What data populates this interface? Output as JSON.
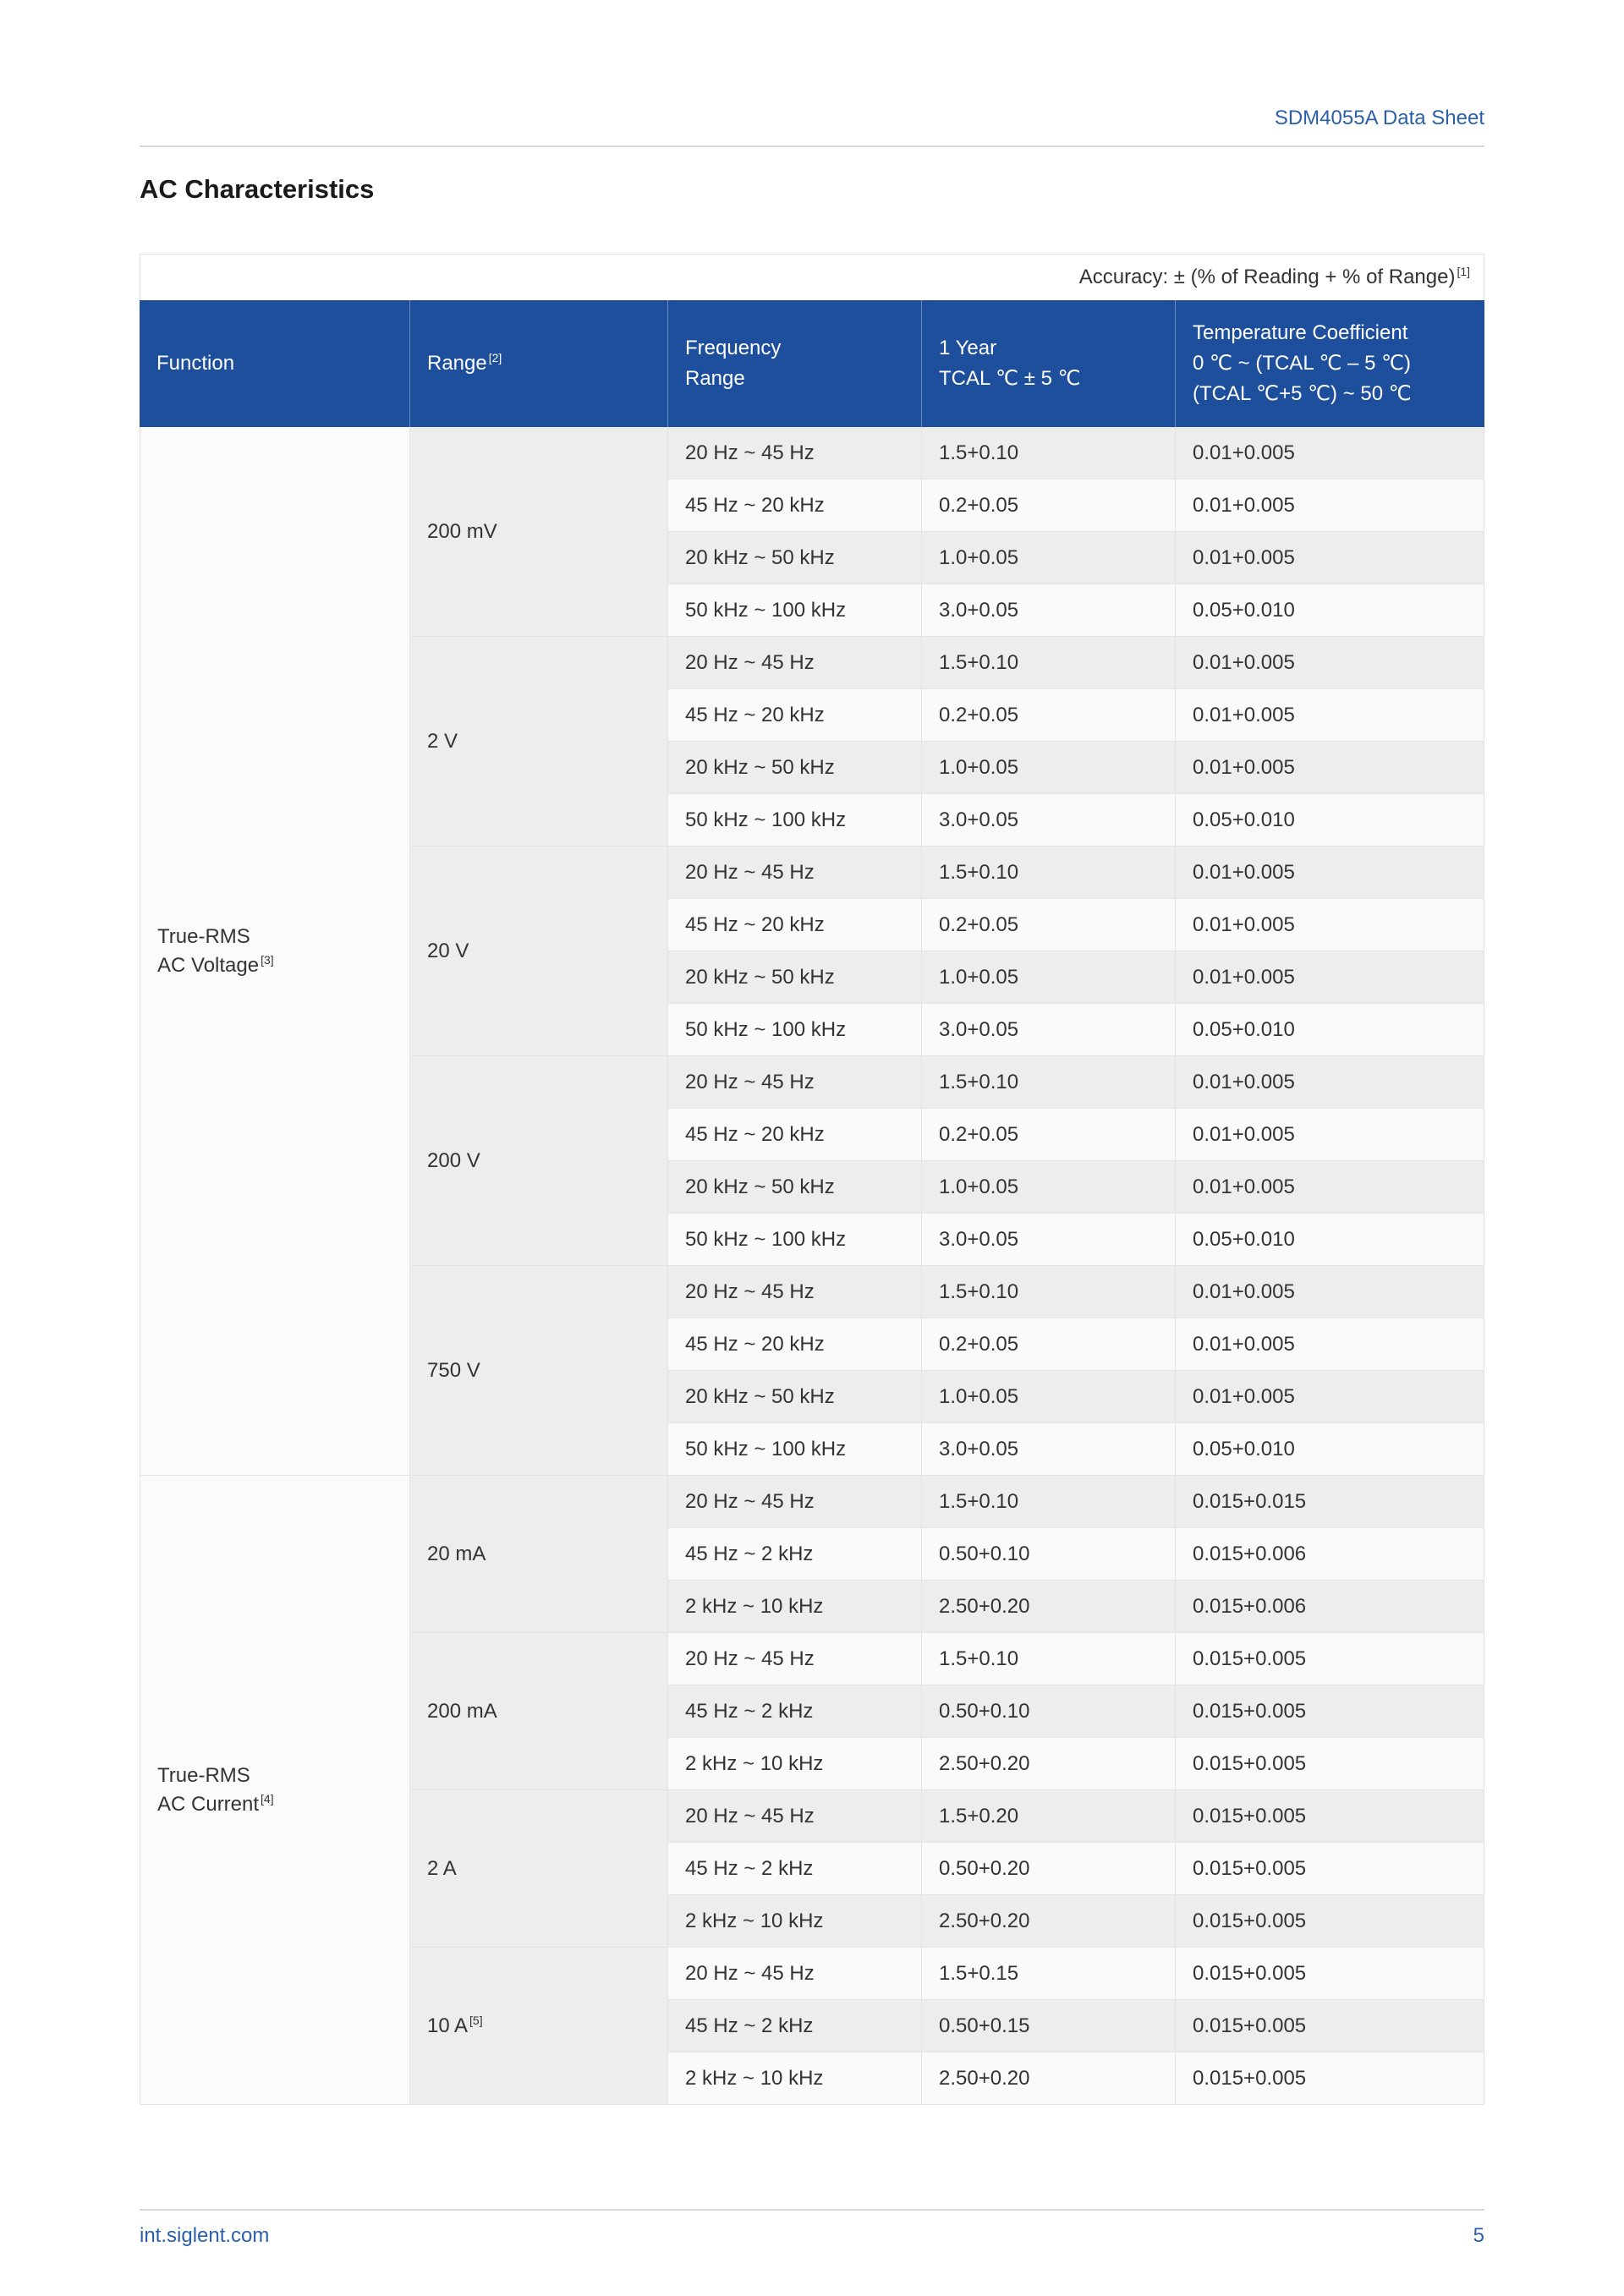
{
  "page": {
    "doc_header": "SDM4055A Data Sheet",
    "title": "AC Characteristics",
    "footer": {
      "site": "int.siglent.com",
      "page_number": "5"
    }
  },
  "colors": {
    "header_bg": "#1e4f9c",
    "accent_blue": "#2b5fa7",
    "row_gray": "#ededed",
    "row_white": "#fafafa"
  },
  "table": {
    "accuracy_note": "Accuracy: ± (% of Reading + % of Range)",
    "accuracy_sup": "[1]",
    "headers": {
      "function": "Function",
      "range": "Range",
      "range_sup": "[2]",
      "frequency_line1": "Frequency",
      "frequency_line2": "Range",
      "year_line1": "1 Year",
      "year_line2": "TCAL ℃ ± 5 ℃",
      "temp_line1": "Temperature Coefficient",
      "temp_line2": "0 ℃ ~ (TCAL ℃ – 5 ℃)",
      "temp_line3": "(TCAL ℃+5 ℃) ~ 50 ℃"
    },
    "groups": [
      {
        "function_line1": "True-RMS",
        "function_line2": "AC Voltage",
        "function_sup": "[3]",
        "ranges": [
          {
            "label": "200 mV",
            "sup": "",
            "rows": [
              [
                "20 Hz ~ 45 Hz",
                "1.5+0.10",
                "0.01+0.005"
              ],
              [
                "45 Hz ~ 20 kHz",
                "0.2+0.05",
                "0.01+0.005"
              ],
              [
                "20 kHz ~ 50 kHz",
                "1.0+0.05",
                "0.01+0.005"
              ],
              [
                "50 kHz ~ 100 kHz",
                "3.0+0.05",
                "0.05+0.010"
              ]
            ]
          },
          {
            "label": "2 V",
            "sup": "",
            "rows": [
              [
                "20 Hz ~ 45 Hz",
                "1.5+0.10",
                "0.01+0.005"
              ],
              [
                "45 Hz ~ 20 kHz",
                "0.2+0.05",
                "0.01+0.005"
              ],
              [
                "20 kHz ~ 50 kHz",
                "1.0+0.05",
                "0.01+0.005"
              ],
              [
                "50 kHz ~ 100 kHz",
                "3.0+0.05",
                "0.05+0.010"
              ]
            ]
          },
          {
            "label": "20 V",
            "sup": "",
            "rows": [
              [
                "20 Hz ~ 45 Hz",
                "1.5+0.10",
                "0.01+0.005"
              ],
              [
                "45 Hz ~ 20 kHz",
                "0.2+0.05",
                "0.01+0.005"
              ],
              [
                "20 kHz ~ 50 kHz",
                "1.0+0.05",
                "0.01+0.005"
              ],
              [
                "50 kHz ~ 100 kHz",
                "3.0+0.05",
                "0.05+0.010"
              ]
            ]
          },
          {
            "label": "200 V",
            "sup": "",
            "rows": [
              [
                "20 Hz ~ 45 Hz",
                "1.5+0.10",
                "0.01+0.005"
              ],
              [
                "45 Hz ~ 20 kHz",
                "0.2+0.05",
                "0.01+0.005"
              ],
              [
                "20 kHz ~ 50 kHz",
                "1.0+0.05",
                "0.01+0.005"
              ],
              [
                "50 kHz ~ 100 kHz",
                "3.0+0.05",
                "0.05+0.010"
              ]
            ]
          },
          {
            "label": "750 V",
            "sup": "",
            "rows": [
              [
                "20 Hz ~ 45 Hz",
                "1.5+0.10",
                "0.01+0.005"
              ],
              [
                "45 Hz ~ 20 kHz",
                "0.2+0.05",
                "0.01+0.005"
              ],
              [
                "20 kHz ~ 50 kHz",
                "1.0+0.05",
                "0.01+0.005"
              ],
              [
                "50 kHz ~ 100 kHz",
                "3.0+0.05",
                "0.05+0.010"
              ]
            ]
          }
        ]
      },
      {
        "function_line1": "True-RMS",
        "function_line2": "AC Current",
        "function_sup": "[4]",
        "ranges": [
          {
            "label": "20 mA",
            "sup": "",
            "rows": [
              [
                "20 Hz ~ 45 Hz",
                "1.5+0.10",
                "0.015+0.015"
              ],
              [
                "45 Hz ~ 2 kHz",
                "0.50+0.10",
                "0.015+0.006"
              ],
              [
                "2 kHz ~ 10 kHz",
                "2.50+0.20",
                "0.015+0.006"
              ]
            ]
          },
          {
            "label": "200 mA",
            "sup": "",
            "rows": [
              [
                "20 Hz ~ 45 Hz",
                "1.5+0.10",
                "0.015+0.005"
              ],
              [
                "45 Hz ~ 2 kHz",
                "0.50+0.10",
                "0.015+0.005"
              ],
              [
                "2 kHz ~ 10 kHz",
                "2.50+0.20",
                "0.015+0.005"
              ]
            ]
          },
          {
            "label": "2 A",
            "sup": "",
            "rows": [
              [
                "20 Hz ~ 45 Hz",
                "1.5+0.20",
                "0.015+0.005"
              ],
              [
                "45 Hz ~ 2 kHz",
                "0.50+0.20",
                "0.015+0.005"
              ],
              [
                "2 kHz ~ 10 kHz",
                "2.50+0.20",
                "0.015+0.005"
              ]
            ]
          },
          {
            "label": "10 A",
            "sup": "[5]",
            "rows": [
              [
                "20 Hz ~ 45 Hz",
                "1.5+0.15",
                "0.015+0.005"
              ],
              [
                "45 Hz ~ 2 kHz",
                "0.50+0.15",
                "0.015+0.005"
              ],
              [
                "2 kHz ~ 10 kHz",
                "2.50+0.20",
                "0.015+0.005"
              ]
            ]
          }
        ]
      }
    ]
  }
}
